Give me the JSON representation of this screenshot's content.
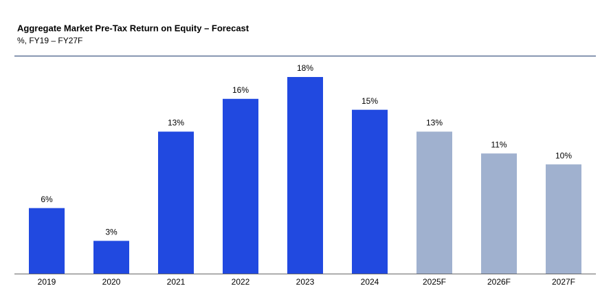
{
  "chart_data": {
    "type": "bar",
    "title": "Aggregate Market Pre-Tax Return on Equity – Forecast",
    "subtitle": "%, FY19 – FY27F",
    "categories": [
      "2019",
      "2020",
      "2021",
      "2022",
      "2023",
      "2024",
      "2025F",
      "2026F",
      "2027F"
    ],
    "values": [
      6,
      3,
      13,
      16,
      18,
      15,
      13,
      11,
      10
    ],
    "value_labels": [
      "6%",
      "3%",
      "13%",
      "16%",
      "18%",
      "15%",
      "13%",
      "11%",
      "10%"
    ],
    "colors": [
      "#2149e0",
      "#2149e0",
      "#2149e0",
      "#2149e0",
      "#2149e0",
      "#2149e0",
      "#a0b1cf",
      "#a0b1cf",
      "#a0b1cf"
    ]
  }
}
